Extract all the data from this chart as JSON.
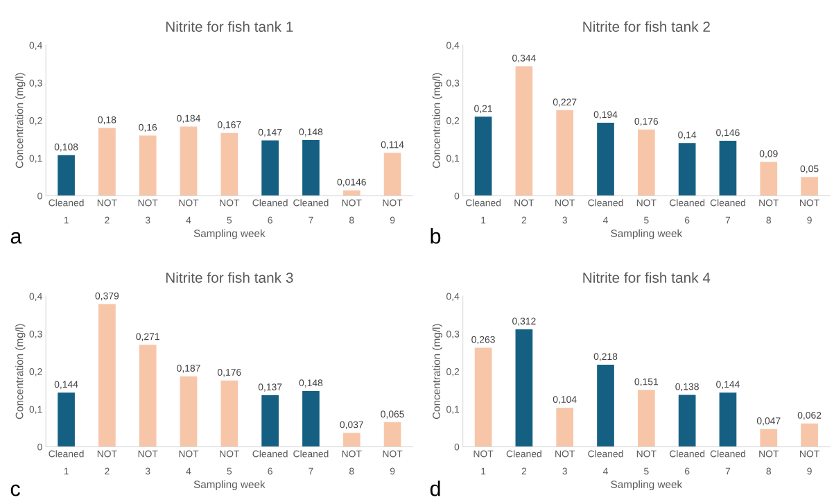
{
  "chart_data": [
    {
      "type": "bar",
      "title": "Nitrite for fish tank 1",
      "xlabel": "Sampling week",
      "ylabel": "Concentration (mg/l)",
      "categories": [
        "Cleaned\n1",
        "NOT\n2",
        "NOT\n3",
        "NOT\n4",
        "NOT\n5",
        "Cleaned\n6",
        "Cleaned\n7",
        "NOT\n8",
        "NOT\n9"
      ],
      "values": [
        0.108,
        0.18,
        0.16,
        0.184,
        0.167,
        0.147,
        0.148,
        0.0146,
        0.114
      ],
      "value_labels": [
        "0,108",
        "0,18",
        "0,16",
        "0,184",
        "0,167",
        "0,147",
        "0,148",
        "0,0146",
        "0,114"
      ],
      "colors": [
        "#156082",
        "#f7c6a9",
        "#f7c6a9",
        "#f7c6a9",
        "#f7c6a9",
        "#156082",
        "#156082",
        "#f7c6a9",
        "#f7c6a9"
      ],
      "ylim": [
        0,
        0.4
      ],
      "yticks": [
        0,
        {
          "value": 0.1,
          "label": "0,1"
        },
        {
          "value": 0.2,
          "label": "0,2"
        },
        {
          "value": 0.3,
          "label": "0,3"
        },
        {
          "value": 0.4,
          "label": "0,4"
        }
      ],
      "annotations": [
        "a"
      ],
      "grid": false,
      "legend": false
    },
    {
      "type": "bar",
      "title": "Nitrite for fish tank 2",
      "xlabel": "Sampling week",
      "ylabel": "Concentration (mg/l)",
      "categories": [
        "Cleaned\n1",
        "NOT\n2",
        "NOT\n3",
        "Cleaned\n4",
        "NOT\n5",
        "Cleaned\n6",
        "Cleaned\n7",
        "NOT\n8",
        "NOT\n9"
      ],
      "values": [
        0.21,
        0.344,
        0.227,
        0.194,
        0.176,
        0.14,
        0.146,
        0.09,
        0.05
      ],
      "value_labels": [
        "0,21",
        "0,344",
        "0,227",
        "0,194",
        "0,176",
        "0,14",
        "0,146",
        "0,09",
        "0,05"
      ],
      "colors": [
        "#156082",
        "#f7c6a9",
        "#f7c6a9",
        "#156082",
        "#f7c6a9",
        "#156082",
        "#156082",
        "#f7c6a9",
        "#f7c6a9"
      ],
      "ylim": [
        0,
        0.4
      ],
      "yticks": [
        0,
        {
          "value": 0.1,
          "label": "0,1"
        },
        {
          "value": 0.2,
          "label": "0,2"
        },
        {
          "value": 0.3,
          "label": "0,3"
        },
        {
          "value": 0.4,
          "label": "0,4"
        }
      ],
      "annotations": [
        "b"
      ],
      "grid": false,
      "legend": false
    },
    {
      "type": "bar",
      "title": "Nitrite for fish tank 3",
      "xlabel": "Sampling week",
      "ylabel": "Concentration (mg/l)",
      "categories": [
        "Cleaned\n1",
        "NOT\n2",
        "NOT\n3",
        "NOT\n4",
        "NOT\n5",
        "Cleaned\n6",
        "Cleaned\n7",
        "NOT\n8",
        "NOT\n9"
      ],
      "values": [
        0.144,
        0.379,
        0.271,
        0.187,
        0.176,
        0.137,
        0.148,
        0.037,
        0.065
      ],
      "value_labels": [
        "0,144",
        "0,379",
        "0,271",
        "0,187",
        "0,176",
        "0,137",
        "0,148",
        "0,037",
        "0,065"
      ],
      "colors": [
        "#156082",
        "#f7c6a9",
        "#f7c6a9",
        "#f7c6a9",
        "#f7c6a9",
        "#156082",
        "#156082",
        "#f7c6a9",
        "#f7c6a9"
      ],
      "ylim": [
        0,
        0.4
      ],
      "yticks": [
        0,
        {
          "value": 0.1,
          "label": "0,1"
        },
        {
          "value": 0.2,
          "label": "0,2"
        },
        {
          "value": 0.3,
          "label": "0,3"
        },
        {
          "value": 0.4,
          "label": "0,4"
        }
      ],
      "annotations": [
        "c"
      ],
      "grid": false,
      "legend": false
    },
    {
      "type": "bar",
      "title": "Nitrite for fish tank 4",
      "xlabel": "Sampling week",
      "ylabel": "Concentration (mg/l)",
      "categories": [
        "NOT\n1",
        "Cleaned\n2",
        "NOT\n3",
        "Cleaned\n4",
        "NOT\n5",
        "Cleaned\n6",
        "Cleaned\n7",
        "NOT\n8",
        "NOT\n9"
      ],
      "values": [
        0.263,
        0.312,
        0.104,
        0.218,
        0.151,
        0.138,
        0.144,
        0.047,
        0.062
      ],
      "value_labels": [
        "0,263",
        "0,312",
        "0,104",
        "0,218",
        "0,151",
        "0,138",
        "0,144",
        "0,047",
        "0,062"
      ],
      "colors": [
        "#f7c6a9",
        "#156082",
        "#f7c6a9",
        "#156082",
        "#f7c6a9",
        "#156082",
        "#156082",
        "#f7c6a9",
        "#f7c6a9"
      ],
      "ylim": [
        0,
        0.4
      ],
      "yticks": [
        0,
        {
          "value": 0.1,
          "label": "0,1"
        },
        {
          "value": 0.2,
          "label": "0,2"
        },
        {
          "value": 0.3,
          "label": "0,3"
        },
        {
          "value": 0.4,
          "label": "0,4"
        }
      ],
      "annotations": [
        "d"
      ],
      "grid": false,
      "legend": false
    }
  ]
}
